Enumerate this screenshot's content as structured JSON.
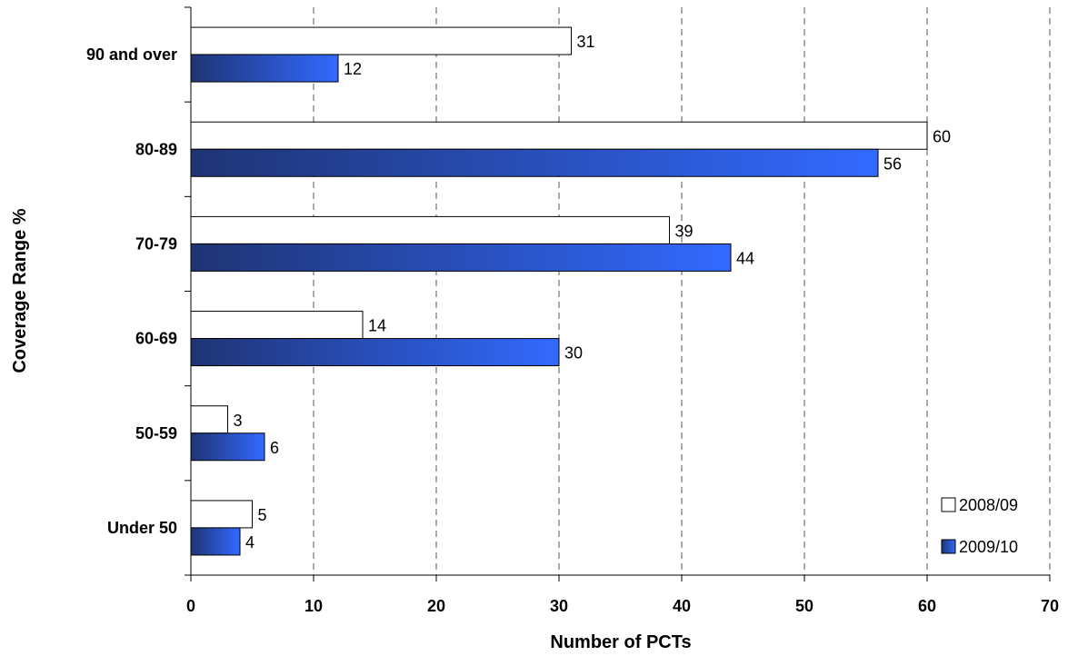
{
  "chart_data": {
    "type": "bar",
    "orientation": "horizontal",
    "categories": [
      "90 and over",
      "80-89",
      "70-79",
      "60-69",
      "50-59",
      "Under 50"
    ],
    "series": [
      {
        "name": "2008/09",
        "values": [
          31,
          60,
          39,
          14,
          3,
          5
        ],
        "color": "#ffffff"
      },
      {
        "name": "2009/10",
        "values": [
          12,
          56,
          44,
          30,
          6,
          4
        ],
        "color": "#2f5fe8"
      }
    ],
    "xlabel": "Number of PCTs",
    "ylabel": "Coverage Range %",
    "xlim": [
      0,
      70
    ],
    "xticks": [
      "0",
      "10",
      "20",
      "30",
      "40",
      "50",
      "60",
      "70"
    ],
    "grid": "vertical dashed",
    "legend": "bottom-right"
  }
}
